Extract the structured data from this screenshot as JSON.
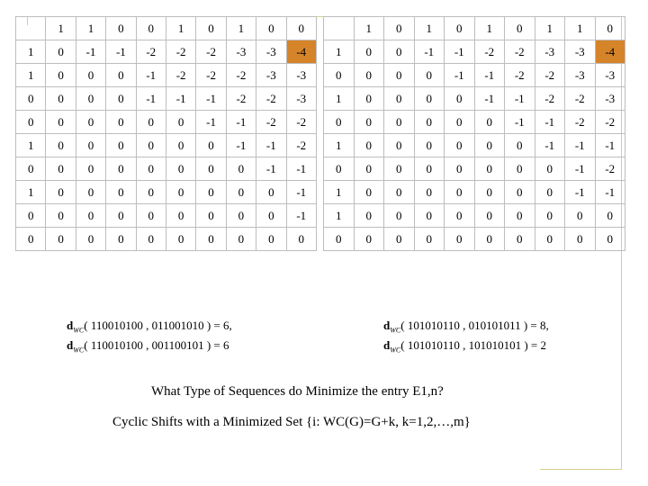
{
  "left_matrix": {
    "header": [
      "1",
      "1",
      "0",
      "0",
      "1",
      "0",
      "1",
      "0",
      "0"
    ],
    "rows": [
      {
        "label": "1",
        "cells": [
          "0",
          "-1",
          "-1",
          "-2",
          "-2",
          "-2",
          "-3",
          "-3",
          "-4"
        ]
      },
      {
        "label": "1",
        "cells": [
          "0",
          "0",
          "0",
          "-1",
          "-2",
          "-2",
          "-2",
          "-3",
          "-3"
        ]
      },
      {
        "label": "0",
        "cells": [
          "0",
          "0",
          "0",
          "-1",
          "-1",
          "-1",
          "-2",
          "-2",
          "-3"
        ]
      },
      {
        "label": "0",
        "cells": [
          "0",
          "0",
          "0",
          "0",
          "0",
          "-1",
          "-1",
          "-2",
          "-2"
        ]
      },
      {
        "label": "1",
        "cells": [
          "0",
          "0",
          "0",
          "0",
          "0",
          "0",
          "-1",
          "-1",
          "-2"
        ]
      },
      {
        "label": "0",
        "cells": [
          "0",
          "0",
          "0",
          "0",
          "0",
          "0",
          "0",
          "-1",
          "-1"
        ]
      },
      {
        "label": "1",
        "cells": [
          "0",
          "0",
          "0",
          "0",
          "0",
          "0",
          "0",
          "0",
          "-1"
        ]
      },
      {
        "label": "0",
        "cells": [
          "0",
          "0",
          "0",
          "0",
          "0",
          "0",
          "0",
          "0",
          "-1"
        ]
      },
      {
        "label": "0",
        "cells": [
          "0",
          "0",
          "0",
          "0",
          "0",
          "0",
          "0",
          "0",
          "0"
        ]
      }
    ],
    "highlight": {
      "row": 0,
      "col": 8
    }
  },
  "right_matrix": {
    "header": [
      "1",
      "0",
      "1",
      "0",
      "1",
      "0",
      "1",
      "1",
      "0"
    ],
    "rows": [
      {
        "label": "1",
        "cells": [
          "0",
          "0",
          "-1",
          "-1",
          "-2",
          "-2",
          "-3",
          "-3",
          "-4"
        ]
      },
      {
        "label": "0",
        "cells": [
          "0",
          "0",
          "0",
          "-1",
          "-1",
          "-2",
          "-2",
          "-3",
          "-3"
        ]
      },
      {
        "label": "1",
        "cells": [
          "0",
          "0",
          "0",
          "0",
          "-1",
          "-1",
          "-2",
          "-2",
          "-3"
        ]
      },
      {
        "label": "0",
        "cells": [
          "0",
          "0",
          "0",
          "0",
          "0",
          "-1",
          "-1",
          "-2",
          "-2"
        ]
      },
      {
        "label": "1",
        "cells": [
          "0",
          "0",
          "0",
          "0",
          "0",
          "0",
          "-1",
          "-1",
          "-1"
        ]
      },
      {
        "label": "0",
        "cells": [
          "0",
          "0",
          "0",
          "0",
          "0",
          "0",
          "0",
          "-1",
          "-2"
        ]
      },
      {
        "label": "1",
        "cells": [
          "0",
          "0",
          "0",
          "0",
          "0",
          "0",
          "0",
          "-1",
          "-1"
        ]
      },
      {
        "label": "1",
        "cells": [
          "0",
          "0",
          "0",
          "0",
          "0",
          "0",
          "0",
          "0",
          "0"
        ]
      },
      {
        "label": "0",
        "cells": [
          "0",
          "0",
          "0",
          "0",
          "0",
          "0",
          "0",
          "0",
          "0"
        ]
      }
    ],
    "highlight": {
      "row": 0,
      "col": 8
    }
  },
  "distances": {
    "left": [
      {
        "d": "d",
        "sub": "WC",
        "args": "( 110010100 , 011001010 ) = 6,"
      },
      {
        "d": "d",
        "sub": "WC",
        "args": "( 110010100 , 001100101 ) = 6"
      }
    ],
    "right": [
      {
        "d": "d",
        "sub": "WC",
        "args": "( 101010110 , 010101011 ) = 8,"
      },
      {
        "d": "d",
        "sub": "WC",
        "args": "( 101010110 , 101010101 ) = 2"
      }
    ]
  },
  "question": "What Type of Sequences do Minimize the entry E1,n?",
  "answer": "Cyclic Shifts with a Minimized Set {i: WC(G)=G+k, k=1,2,…,m}",
  "colors": {
    "highlight": "#d6842a",
    "grid": "#bdbdbd",
    "decoration": "#d6d08a"
  }
}
